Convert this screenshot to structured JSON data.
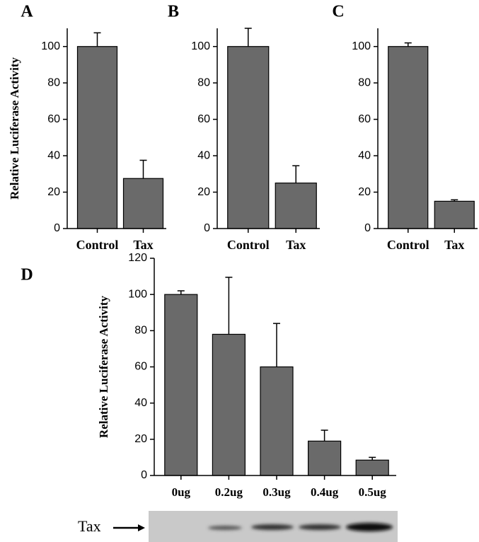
{
  "chart_data": [
    {
      "type": "bar",
      "label": "A",
      "y_label": "Relative Luciferase Activity",
      "categories": [
        "Control",
        "Tax"
      ],
      "values": [
        100,
        27.5
      ],
      "errors": [
        7.5,
        10
      ],
      "color": "#6a6a6a",
      "ylim": [
        0,
        110
      ],
      "yticks": [
        0,
        20,
        40,
        60,
        80,
        100
      ]
    },
    {
      "type": "bar",
      "label": "B",
      "categories": [
        "Control",
        "Tax"
      ],
      "values": [
        100,
        25
      ],
      "errors": [
        10,
        9.5
      ],
      "color": "#6a6a6a",
      "ylim": [
        0,
        110
      ],
      "yticks": [
        0,
        20,
        40,
        60,
        80,
        100
      ]
    },
    {
      "type": "bar",
      "label": "C",
      "categories": [
        "Control",
        "Tax"
      ],
      "values": [
        100,
        15
      ],
      "errors": [
        2,
        0.8
      ],
      "color": "#6a6a6a",
      "ylim": [
        0,
        110
      ],
      "yticks": [
        0,
        20,
        40,
        60,
        80,
        100
      ]
    },
    {
      "type": "bar",
      "label": "D",
      "y_label": "Relative Luciferase Activity",
      "categories": [
        "0ug",
        "0.2ug",
        "0.3ug",
        "0.4ug",
        "0.5ug"
      ],
      "values": [
        100,
        78,
        60,
        19,
        8.5
      ],
      "errors": [
        2,
        31.5,
        24,
        6,
        1.5
      ],
      "color": "#6a6a6a",
      "ylim": [
        0,
        120
      ],
      "yticks": [
        0,
        20,
        40,
        60,
        80,
        100,
        120
      ]
    }
  ],
  "blot": {
    "label": "Tax"
  }
}
